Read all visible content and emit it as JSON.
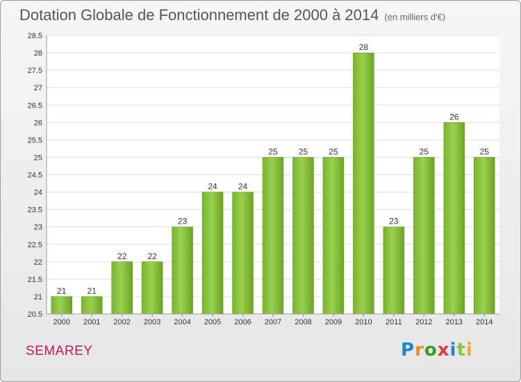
{
  "header": {
    "title": "Dotation Globale de Fonctionnement de 2000 à 2014",
    "subtitle": "(en milliers d'€)"
  },
  "footer": {
    "commune": "SEMAREY",
    "logo": "Proxiti"
  },
  "chart_data": {
    "type": "bar",
    "categories": [
      "2000",
      "2001",
      "2002",
      "2003",
      "2004",
      "2005",
      "2006",
      "2007",
      "2008",
      "2009",
      "2010",
      "2011",
      "2012",
      "2013",
      "2014"
    ],
    "values": [
      21,
      21,
      22,
      22,
      23,
      24,
      24,
      25,
      25,
      25,
      28,
      23,
      25,
      26,
      25
    ],
    "value_labels": [
      "21",
      "21",
      "22",
      "22",
      "23",
      "24",
      "24",
      "25",
      "25",
      "25",
      "28",
      "23",
      "25",
      "26",
      "25"
    ],
    "yticks": [
      20.5,
      21,
      21.5,
      22,
      22.5,
      23,
      23.5,
      24,
      24.5,
      25,
      25.5,
      26,
      26.5,
      27,
      27.5,
      28,
      28.5
    ],
    "ytick_labels": [
      "20.5",
      "21",
      "21.5",
      "22",
      "22.5",
      "23",
      "23.5",
      "24",
      "24.5",
      "25",
      "25.5",
      "26",
      "26.5",
      "27",
      "27.5",
      "28",
      "28.5"
    ],
    "ylim": [
      20.5,
      28.5
    ],
    "grid": true,
    "bar_color": "#8cc43f",
    "bar_color_dark": "#5e9a1c"
  }
}
